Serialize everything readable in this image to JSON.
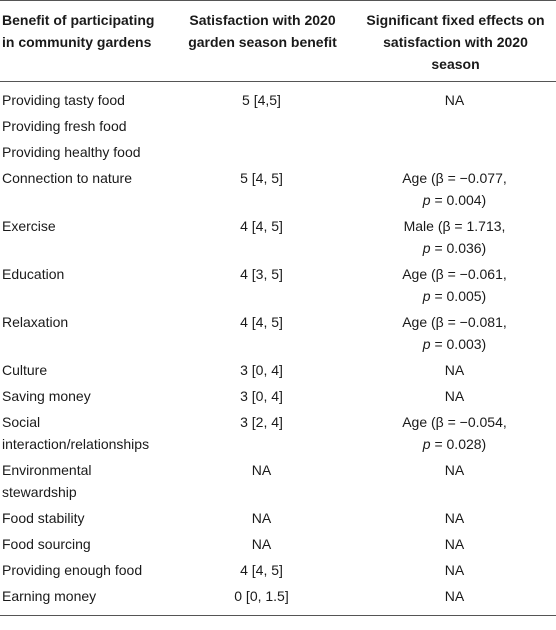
{
  "headers": {
    "benefit": "Benefit of participating in community gardens",
    "satisfaction": "Satisfaction with 2020 garden season benefit",
    "effects": "Significant fixed effects on satisfaction with 2020 season"
  },
  "rows": [
    {
      "benefit": "Providing tasty food",
      "satisfaction": "5 [4,5]",
      "effect": "NA"
    },
    {
      "benefit": "Providing fresh food",
      "satisfaction": "",
      "effect": ""
    },
    {
      "benefit": "Providing healthy food",
      "satisfaction": "",
      "effect": ""
    },
    {
      "benefit": "Connection to nature",
      "satisfaction": "5 [4, 5]",
      "effect_pre": "Age (β = −0.077,",
      "effect_p": "p",
      "effect_post": " = 0.004)"
    },
    {
      "benefit": "Exercise",
      "satisfaction": "4 [4, 5]",
      "effect_pre": "Male (β = 1.713,",
      "effect_p": "p",
      "effect_post": " = 0.036)"
    },
    {
      "benefit": "Education",
      "satisfaction": "4 [3, 5]",
      "effect_pre": "Age (β = −0.061,",
      "effect_p": "p",
      "effect_post": " = 0.005)"
    },
    {
      "benefit": "Relaxation",
      "satisfaction": "4 [4, 5]",
      "effect_pre": "Age (β = −0.081,",
      "effect_p": "p",
      "effect_post": " = 0.003)"
    },
    {
      "benefit": "Culture",
      "satisfaction": "3 [0, 4]",
      "effect": "NA"
    },
    {
      "benefit": "Saving money",
      "satisfaction": "3 [0, 4]",
      "effect": "NA"
    },
    {
      "benefit": "Social interaction/relationships",
      "satisfaction": "3 [2, 4]",
      "effect_pre": "Age (β = −0.054,",
      "effect_p": "p",
      "effect_post": " = 0.028)"
    },
    {
      "benefit": "Environmental stewardship",
      "satisfaction": "NA",
      "effect": "NA"
    },
    {
      "benefit": "Food stability",
      "satisfaction": "NA",
      "effect": "NA"
    },
    {
      "benefit": "Food sourcing",
      "satisfaction": "NA",
      "effect": "NA"
    },
    {
      "benefit": "Providing enough food",
      "satisfaction": "4 [4, 5]",
      "effect": "NA"
    },
    {
      "benefit": "Earning money",
      "satisfaction": "0 [0, 1.5]",
      "effect": "NA"
    }
  ]
}
